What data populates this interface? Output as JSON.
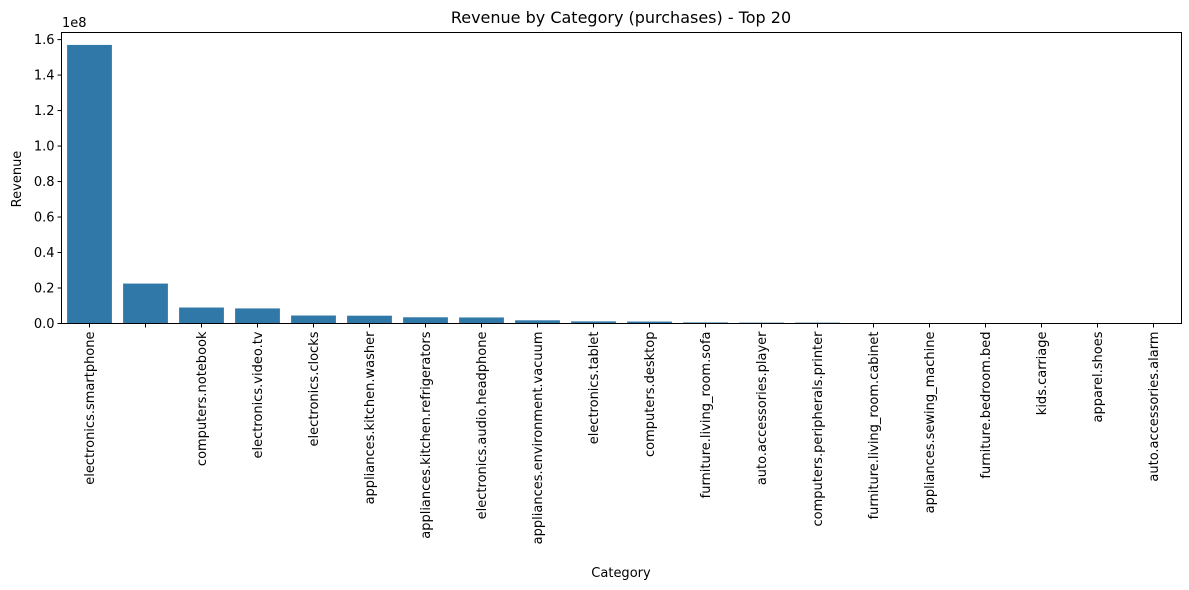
{
  "chart_data": {
    "type": "bar",
    "title": "Revenue by Category (purchases) - Top 20",
    "xlabel": "Category",
    "ylabel": "Revenue",
    "y_multiplier_label": "1e8",
    "ylim": [
      0,
      1.64
    ],
    "yticks": [
      0.0,
      0.2,
      0.4,
      0.6,
      0.8,
      1.0,
      1.2,
      1.4,
      1.6
    ],
    "ytick_labels": [
      "0.0",
      "0.2",
      "0.4",
      "0.6",
      "0.8",
      "1.0",
      "1.2",
      "1.4",
      "1.6"
    ],
    "grid": false,
    "legend": "none",
    "bar_color": "#2f78a8",
    "categories": [
      "electronics.smartphone",
      "",
      "computers.notebook",
      "electronics.video.tv",
      "electronics.clocks",
      "appliances.kitchen.washer",
      "appliances.kitchen.refrigerators",
      "electronics.audio.headphone",
      "appliances.environment.vacuum",
      "electronics.tablet",
      "computers.desktop",
      "furniture.living_room.sofa",
      "auto.accessories.player",
      "computers.peripherals.printer",
      "furniture.living_room.cabinet",
      "appliances.sewing_machine",
      "furniture.bedroom.bed",
      "kids.carriage",
      "apparel.shoes",
      "auto.accessories.alarm"
    ],
    "values": [
      1.57,
      0.225,
      0.09,
      0.085,
      0.045,
      0.044,
      0.035,
      0.034,
      0.018,
      0.012,
      0.011,
      0.006,
      0.005,
      0.005,
      0.002,
      0.002,
      0.0015,
      0.001,
      0.001,
      0.001
    ]
  }
}
